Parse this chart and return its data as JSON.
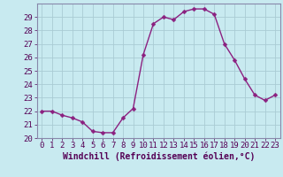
{
  "x": [
    0,
    1,
    2,
    3,
    4,
    5,
    6,
    7,
    8,
    9,
    10,
    11,
    12,
    13,
    14,
    15,
    16,
    17,
    18,
    19,
    20,
    21,
    22,
    23
  ],
  "y": [
    22.0,
    22.0,
    21.7,
    21.5,
    21.2,
    20.5,
    20.4,
    20.4,
    21.5,
    22.2,
    26.2,
    28.5,
    29.0,
    28.8,
    29.4,
    29.6,
    29.6,
    29.2,
    27.0,
    25.8,
    24.4,
    23.2,
    22.8,
    23.2
  ],
  "line_color": "#8b2080",
  "marker": "D",
  "marker_size": 2.5,
  "bg_color": "#c8eaf0",
  "grid_color": "#aaccd4",
  "xlabel": "Windchill (Refroidissement éolien,°C)",
  "xlabel_fontsize": 7,
  "tick_fontsize": 6.5,
  "ylim": [
    20,
    30
  ],
  "yticks": [
    20,
    21,
    22,
    23,
    24,
    25,
    26,
    27,
    28,
    29
  ],
  "xticks": [
    0,
    1,
    2,
    3,
    4,
    5,
    6,
    7,
    8,
    9,
    10,
    11,
    12,
    13,
    14,
    15,
    16,
    17,
    18,
    19,
    20,
    21,
    22,
    23
  ],
  "line_width": 1.0,
  "spine_color": "#8888aa"
}
